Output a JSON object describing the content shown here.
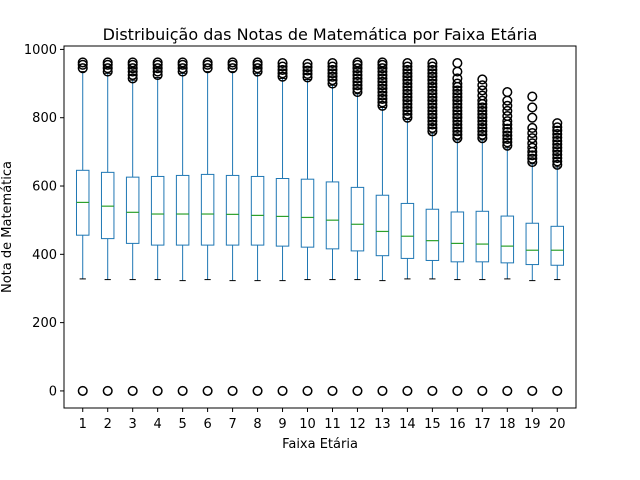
{
  "chart_data": {
    "type": "box",
    "title": "Distribuição das Notas de Matemática por Faixa Etária",
    "xlabel": "Faixa Etária",
    "ylabel": "Nota de Matemática",
    "ylim": [
      -50,
      1010
    ],
    "yticks": [
      0,
      200,
      400,
      600,
      800,
      1000
    ],
    "grid": false,
    "colors": {
      "box": "#1f77b4",
      "median": "#2ca02c",
      "flier": "#000000"
    },
    "categories": [
      "1",
      "2",
      "3",
      "4",
      "5",
      "6",
      "7",
      "8",
      "9",
      "10",
      "11",
      "12",
      "13",
      "14",
      "15",
      "16",
      "17",
      "18",
      "19",
      "20"
    ],
    "boxes": [
      {
        "whisker_low": 328,
        "q1": 456,
        "median": 552,
        "q3": 646,
        "whisker_high": 935,
        "fliers_high": [
          945,
          955,
          962
        ],
        "fliers_low": [
          0
        ]
      },
      {
        "whisker_low": 326,
        "q1": 446,
        "median": 541,
        "q3": 640,
        "whisker_high": 930,
        "fliers_high": [
          935,
          945,
          955,
          962
        ],
        "fliers_low": [
          0
        ]
      },
      {
        "whisker_low": 326,
        "q1": 432,
        "median": 523,
        "q3": 626,
        "whisker_high": 910,
        "fliers_high": [
          915,
          925,
          935,
          945,
          955,
          962
        ],
        "fliers_low": [
          0
        ]
      },
      {
        "whisker_low": 326,
        "q1": 427,
        "median": 518,
        "q3": 628,
        "whisker_high": 918,
        "fliers_high": [
          925,
          935,
          945,
          955,
          962
        ],
        "fliers_low": [
          0
        ]
      },
      {
        "whisker_low": 323,
        "q1": 427,
        "median": 518,
        "q3": 631,
        "whisker_high": 930,
        "fliers_high": [
          935,
          945,
          955,
          962
        ],
        "fliers_low": [
          0
        ]
      },
      {
        "whisker_low": 326,
        "q1": 427,
        "median": 518,
        "q3": 634,
        "whisker_high": 935,
        "fliers_high": [
          945,
          955,
          962
        ],
        "fliers_low": [
          0
        ]
      },
      {
        "whisker_low": 323,
        "q1": 427,
        "median": 517,
        "q3": 631,
        "whisker_high": 935,
        "fliers_high": [
          945,
          955,
          962
        ],
        "fliers_low": [
          0
        ]
      },
      {
        "whisker_low": 323,
        "q1": 427,
        "median": 514,
        "q3": 628,
        "whisker_high": 930,
        "fliers_high": [
          935,
          945,
          955,
          962
        ],
        "fliers_low": [
          0
        ]
      },
      {
        "whisker_low": 323,
        "q1": 424,
        "median": 511,
        "q3": 622,
        "whisker_high": 915,
        "fliers_high": [
          920,
          930,
          940,
          950,
          960
        ],
        "fliers_low": [
          0
        ]
      },
      {
        "whisker_low": 326,
        "q1": 421,
        "median": 508,
        "q3": 620,
        "whisker_high": 912,
        "fliers_high": [
          918,
          928,
          938,
          948,
          958
        ],
        "fliers_low": [
          0
        ]
      },
      {
        "whisker_low": 326,
        "q1": 416,
        "median": 500,
        "q3": 612,
        "whisker_high": 895,
        "fliers_high": [
          900,
          910,
          920,
          930,
          940,
          950,
          960
        ],
        "fliers_low": [
          0
        ]
      },
      {
        "whisker_low": 326,
        "q1": 410,
        "median": 488,
        "q3": 596,
        "whisker_high": 870,
        "fliers_high": [
          875,
          885,
          895,
          905,
          915,
          925,
          935,
          945,
          955,
          962
        ],
        "fliers_low": [
          0
        ]
      },
      {
        "whisker_low": 323,
        "q1": 396,
        "median": 467,
        "q3": 573,
        "whisker_high": 830,
        "fliers_high": [
          835,
          845,
          855,
          865,
          875,
          885,
          895,
          905,
          915,
          925,
          935,
          945,
          955,
          962
        ],
        "fliers_low": [
          0
        ]
      },
      {
        "whisker_low": 328,
        "q1": 388,
        "median": 453,
        "q3": 549,
        "whisker_high": 795,
        "fliers_high": [
          800,
          810,
          820,
          830,
          840,
          850,
          860,
          870,
          880,
          890,
          900,
          910,
          920,
          930,
          940,
          950,
          960
        ],
        "fliers_low": [
          0
        ]
      },
      {
        "whisker_low": 328,
        "q1": 382,
        "median": 440,
        "q3": 532,
        "whisker_high": 755,
        "fliers_high": [
          760,
          770,
          780,
          790,
          800,
          810,
          820,
          830,
          840,
          850,
          860,
          870,
          880,
          890,
          900,
          910,
          920,
          930,
          940,
          950,
          960
        ],
        "fliers_low": [
          0
        ]
      },
      {
        "whisker_low": 326,
        "q1": 378,
        "median": 432,
        "q3": 524,
        "whisker_high": 735,
        "fliers_high": [
          740,
          750,
          760,
          770,
          780,
          790,
          800,
          810,
          820,
          830,
          840,
          850,
          860,
          870,
          880,
          890,
          900,
          915,
          935,
          960
        ],
        "fliers_low": [
          0
        ]
      },
      {
        "whisker_low": 326,
        "q1": 378,
        "median": 430,
        "q3": 526,
        "whisker_high": 735,
        "fliers_high": [
          740,
          750,
          760,
          770,
          780,
          790,
          800,
          810,
          820,
          830,
          840,
          850,
          865,
          880,
          895,
          912
        ],
        "fliers_low": [
          0
        ]
      },
      {
        "whisker_low": 328,
        "q1": 375,
        "median": 424,
        "q3": 512,
        "whisker_high": 712,
        "fliers_high": [
          718,
          728,
          738,
          748,
          758,
          768,
          780,
          790,
          805,
          820,
          835,
          850,
          875
        ],
        "fliers_low": [
          0
        ]
      },
      {
        "whisker_low": 323,
        "q1": 370,
        "median": 412,
        "q3": 491,
        "whisker_high": 665,
        "fliers_high": [
          670,
          680,
          690,
          700,
          712,
          725,
          740,
          755,
          770,
          800,
          830,
          862
        ],
        "fliers_low": [
          0
        ]
      },
      {
        "whisker_low": 326,
        "q1": 368,
        "median": 412,
        "q3": 482,
        "whisker_high": 656,
        "fliers_high": [
          662,
          672,
          682,
          692,
          702,
          712,
          722,
          732,
          742,
          752,
          762,
          772,
          784
        ],
        "fliers_low": [
          0
        ]
      }
    ]
  }
}
